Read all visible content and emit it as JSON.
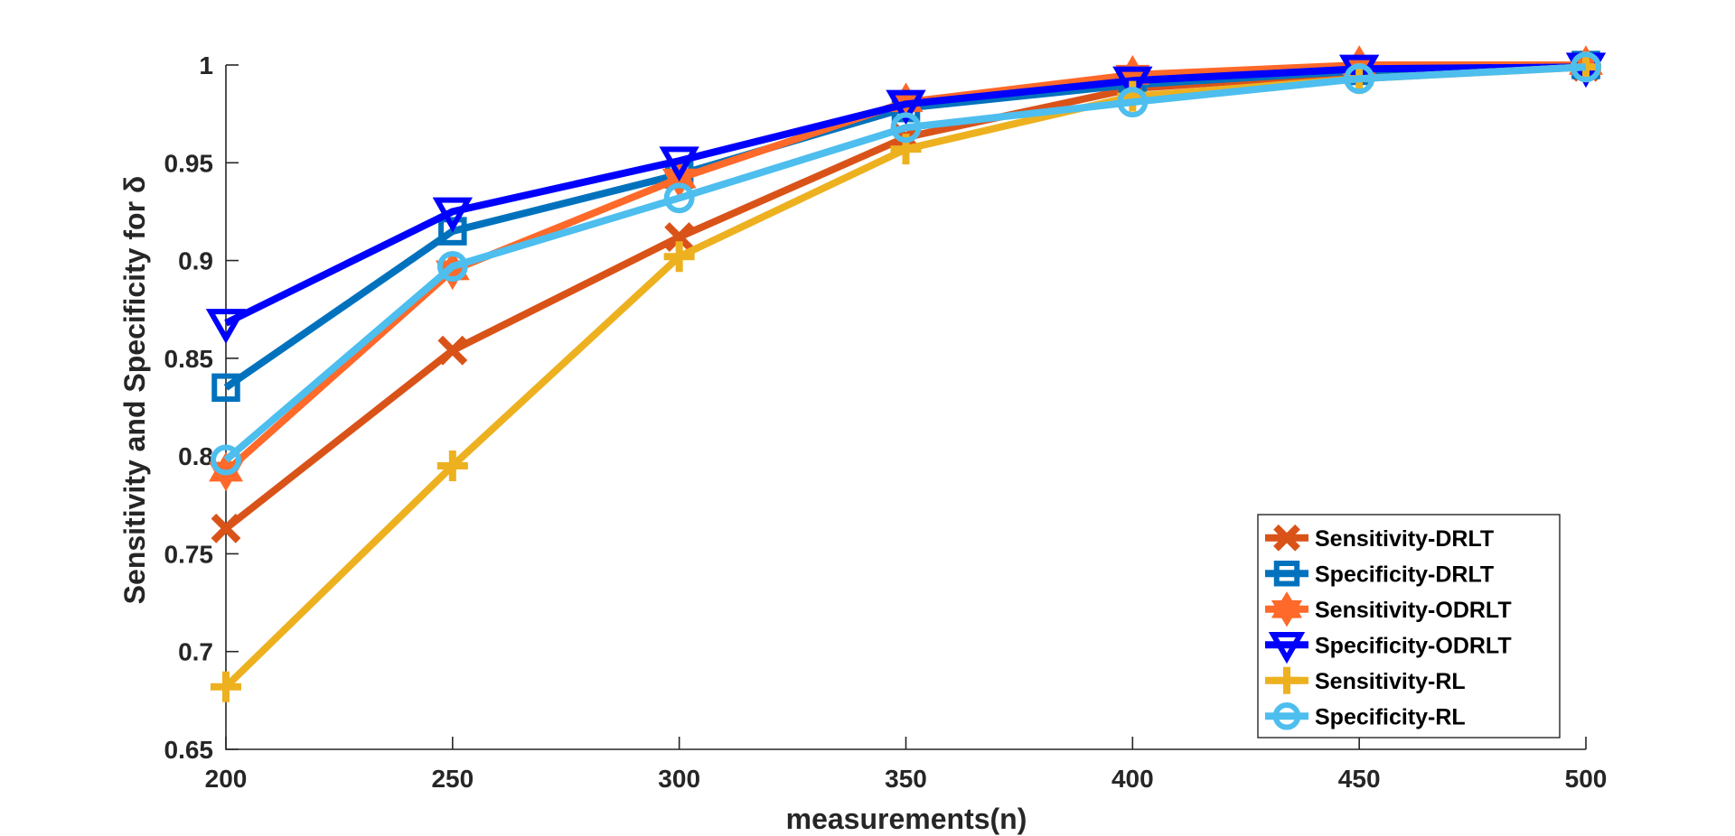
{
  "chart_data": {
    "type": "line",
    "title": "",
    "xlabel": "measurements(n)",
    "ylabel": "Sensitivity and Specificity for δ",
    "x": [
      200,
      250,
      300,
      350,
      400,
      450,
      500
    ],
    "xlim": [
      200,
      500
    ],
    "ylim": [
      0.65,
      1.0
    ],
    "xticks": [
      "200",
      "250",
      "300",
      "350",
      "400",
      "450",
      "500"
    ],
    "yticks": [
      "0.65",
      "0.7",
      "0.75",
      "0.8",
      "0.85",
      "0.9",
      "0.95",
      "1"
    ],
    "grid": false,
    "legend_position": "bottom-right",
    "series": [
      {
        "name": "Sensitivity-DRLT",
        "marker": "x",
        "color": "#D95319",
        "values": [
          0.763,
          0.854,
          0.912,
          0.963,
          0.988,
          0.996,
          0.999
        ]
      },
      {
        "name": "Specificity-DRLT",
        "marker": "square",
        "color": "#0072BD",
        "values": [
          0.835,
          0.915,
          0.944,
          0.978,
          0.99,
          0.997,
          1.0
        ]
      },
      {
        "name": "Sensitivity-ODRLT",
        "marker": "hexagram",
        "color": "#FF6929",
        "values": [
          0.792,
          0.895,
          0.942,
          0.981,
          0.995,
          1.0,
          1.0
        ]
      },
      {
        "name": "Specificity-ODRLT",
        "marker": "triangle-down",
        "color": "#0000FF",
        "values": [
          0.868,
          0.925,
          0.951,
          0.98,
          0.992,
          0.998,
          0.999
        ]
      },
      {
        "name": "Sensitivity-RL",
        "marker": "plus",
        "color": "#EDB120",
        "values": [
          0.682,
          0.795,
          0.902,
          0.957,
          0.984,
          0.993,
          0.999
        ]
      },
      {
        "name": "Specificity-RL",
        "marker": "circle",
        "color": "#4DBEEE",
        "values": [
          0.798,
          0.897,
          0.932,
          0.968,
          0.981,
          0.993,
          0.999
        ]
      }
    ]
  }
}
